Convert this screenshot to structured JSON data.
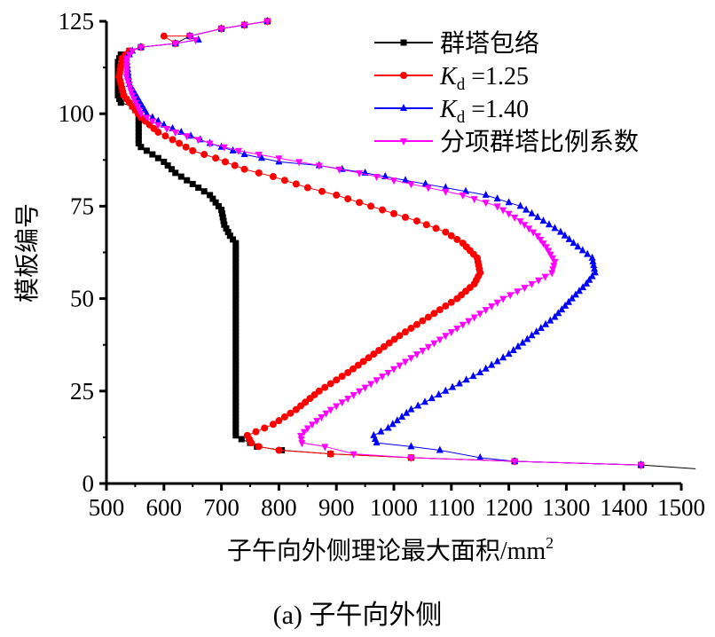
{
  "chart_data": {
    "type": "line",
    "title": "",
    "caption": "(a) 子午向外侧",
    "xlabel": "子午向外侧理论最大面积/mm",
    "xlabel_sup": "2",
    "ylabel": "模板编号",
    "xlim": [
      500,
      1500
    ],
    "ylim": [
      0,
      125
    ],
    "xticks": [
      "500",
      "600",
      "700",
      "800",
      "900",
      "1000",
      "1100",
      "1200",
      "1300",
      "1400",
      "1500"
    ],
    "yticks": [
      "0",
      "25",
      "50",
      "75",
      "100",
      "125"
    ],
    "legend_position": "top-right",
    "series": [
      {
        "name": "群塔包络",
        "subscript": "",
        "color": "#000000",
        "marker": "square",
        "points": [
          [
            1525,
            4
          ],
          [
            1430,
            5
          ],
          [
            1210,
            6
          ],
          [
            1030,
            7
          ],
          [
            890,
            8
          ],
          [
            805,
            9
          ],
          [
            762,
            10
          ],
          [
            750,
            11
          ],
          [
            735,
            12
          ],
          [
            725,
            13
          ],
          [
            725,
            20
          ],
          [
            725,
            30
          ],
          [
            725,
            40
          ],
          [
            725,
            50
          ],
          [
            725,
            60
          ],
          [
            725,
            65
          ],
          [
            715,
            67
          ],
          [
            705,
            70
          ],
          [
            700,
            74
          ],
          [
            690,
            76
          ],
          [
            680,
            78
          ],
          [
            660,
            80
          ],
          [
            640,
            82
          ],
          [
            620,
            84
          ],
          [
            600,
            87
          ],
          [
            580,
            89
          ],
          [
            560,
            91
          ],
          [
            556,
            92
          ],
          [
            556,
            100
          ],
          [
            545,
            102
          ],
          [
            525,
            103
          ],
          [
            520,
            105
          ],
          [
            520,
            110
          ],
          [
            520,
            114
          ],
          [
            525,
            116
          ],
          [
            540,
            117
          ],
          [
            560,
            118
          ],
          [
            620,
            119
          ],
          [
            645,
            121
          ],
          [
            700,
            123
          ],
          [
            740,
            124
          ],
          [
            780,
            125
          ]
        ]
      },
      {
        "name": "K",
        "subscript": "d",
        "suffix": " =1.25",
        "color": "#ff0000",
        "marker": "circle",
        "points": [
          [
            1430,
            5
          ],
          [
            1210,
            6
          ],
          [
            1030,
            7
          ],
          [
            890,
            8
          ],
          [
            800,
            9
          ],
          [
            765,
            10
          ],
          [
            752,
            11
          ],
          [
            745,
            13
          ],
          [
            760,
            14
          ],
          [
            790,
            16
          ],
          [
            830,
            20
          ],
          [
            870,
            25
          ],
          [
            920,
            30
          ],
          [
            965,
            35
          ],
          [
            1010,
            40
          ],
          [
            1060,
            45
          ],
          [
            1110,
            50
          ],
          [
            1140,
            54
          ],
          [
            1150,
            57
          ],
          [
            1145,
            61
          ],
          [
            1120,
            65
          ],
          [
            1090,
            68
          ],
          [
            1040,
            71
          ],
          [
            960,
            75
          ],
          [
            900,
            78
          ],
          [
            850,
            80
          ],
          [
            790,
            83
          ],
          [
            740,
            85
          ],
          [
            690,
            88
          ],
          [
            650,
            90
          ],
          [
            615,
            93
          ],
          [
            590,
            95
          ],
          [
            560,
            99
          ],
          [
            545,
            102
          ],
          [
            530,
            105
          ],
          [
            522,
            110
          ],
          [
            527,
            115
          ],
          [
            540,
            117
          ],
          [
            560,
            118
          ],
          [
            620,
            119
          ],
          [
            600,
            121
          ],
          [
            645,
            121
          ],
          [
            700,
            123
          ],
          [
            740,
            124
          ],
          [
            780,
            125
          ]
        ]
      },
      {
        "name": "K",
        "subscript": "d",
        "suffix": " =1.40",
        "color": "#0000ff",
        "marker": "triangle-up",
        "points": [
          [
            1430,
            5
          ],
          [
            1210,
            6
          ],
          [
            1150,
            7
          ],
          [
            1080,
            9
          ],
          [
            1030,
            10
          ],
          [
            970,
            11
          ],
          [
            965,
            13
          ],
          [
            990,
            15
          ],
          [
            1030,
            20
          ],
          [
            1090,
            25
          ],
          [
            1150,
            30
          ],
          [
            1200,
            35
          ],
          [
            1240,
            40
          ],
          [
            1280,
            45
          ],
          [
            1310,
            50
          ],
          [
            1335,
            54
          ],
          [
            1350,
            57
          ],
          [
            1345,
            61
          ],
          [
            1320,
            64
          ],
          [
            1290,
            68
          ],
          [
            1250,
            72
          ],
          [
            1220,
            75
          ],
          [
            1160,
            78
          ],
          [
            1090,
            80
          ],
          [
            1020,
            82
          ],
          [
            950,
            84
          ],
          [
            870,
            86
          ],
          [
            800,
            87
          ],
          [
            740,
            89
          ],
          [
            680,
            92
          ],
          [
            630,
            95
          ],
          [
            600,
            97
          ],
          [
            570,
            100
          ],
          [
            555,
            104
          ],
          [
            540,
            108
          ],
          [
            535,
            115
          ],
          [
            545,
            117
          ],
          [
            560,
            118
          ],
          [
            620,
            119
          ],
          [
            660,
            120
          ],
          [
            645,
            121
          ],
          [
            700,
            123
          ],
          [
            740,
            124
          ],
          [
            780,
            125
          ]
        ]
      },
      {
        "name": "分项群塔比例系数",
        "subscript": "",
        "color": "#ff00ff",
        "marker": "triangle-down",
        "points": [
          [
            1430,
            5
          ],
          [
            1210,
            6
          ],
          [
            1030,
            7
          ],
          [
            930,
            8
          ],
          [
            880,
            10
          ],
          [
            840,
            11
          ],
          [
            838,
            13
          ],
          [
            850,
            15
          ],
          [
            890,
            20
          ],
          [
            940,
            25
          ],
          [
            990,
            30
          ],
          [
            1040,
            35
          ],
          [
            1090,
            40
          ],
          [
            1140,
            45
          ],
          [
            1190,
            50
          ],
          [
            1240,
            54
          ],
          [
            1275,
            57
          ],
          [
            1280,
            60
          ],
          [
            1265,
            64
          ],
          [
            1250,
            67
          ],
          [
            1220,
            71
          ],
          [
            1180,
            75
          ],
          [
            1120,
            78
          ],
          [
            1060,
            80
          ],
          [
            1000,
            82
          ],
          [
            940,
            84
          ],
          [
            870,
            86
          ],
          [
            800,
            88
          ],
          [
            730,
            90
          ],
          [
            680,
            92
          ],
          [
            620,
            95
          ],
          [
            590,
            97
          ],
          [
            560,
            100
          ],
          [
            545,
            105
          ],
          [
            535,
            110
          ],
          [
            535,
            115
          ],
          [
            545,
            117
          ],
          [
            560,
            118
          ],
          [
            620,
            119
          ],
          [
            655,
            120
          ],
          [
            645,
            121
          ],
          [
            700,
            123
          ],
          [
            740,
            124
          ],
          [
            780,
            125
          ]
        ]
      }
    ]
  }
}
